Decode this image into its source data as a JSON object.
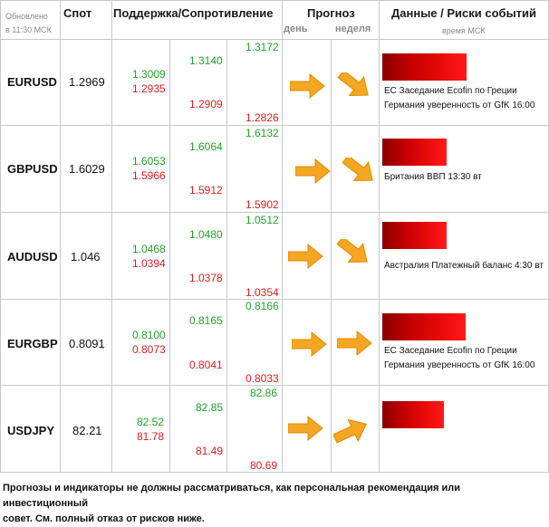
{
  "header": {
    "updated_line1": "Обновлено",
    "updated_line2": "в 11:30 МСК",
    "spot": "Спот",
    "support_resistance": "Поддержка/Сопротивление",
    "forecast": "Прогноз",
    "day": "день",
    "week": "неделя",
    "events": "Данные / Риски событий",
    "events_time": "время МСК"
  },
  "colors": {
    "support": "#22a02a",
    "resistance": "#d81e1e",
    "arrow": "#f5a623",
    "event_bar": "#e00000"
  },
  "rows": [
    {
      "pair": "EURUSD",
      "spot": "1.2969",
      "s1": "1.3009",
      "r1": "1.2935",
      "s2": "1.3140",
      "r2": "1.2909",
      "s3": "1.3172",
      "r3": "1.2826",
      "day_arrow": "right-arrow-icon",
      "week_arrow": "down-right-arrow-icon",
      "events": [
        "ЕС Заседание Ecofin по Греции",
        "Германия уверенность от GfK 16:00"
      ]
    },
    {
      "pair": "GBPUSD",
      "spot": "1.6029",
      "s1": "1.6053",
      "r1": "1.5966",
      "s2": "1.6064",
      "r2": "1.5912",
      "s3": "1.6132",
      "r3": "1.5902",
      "day_arrow": "right-arrow-icon",
      "week_arrow": "down-right-arrow-icon",
      "events": [
        "Британия ВВП 13:30 вт"
      ]
    },
    {
      "pair": "AUDUSD",
      "spot": "1.046",
      "s1": "1.0468",
      "r1": "1.0394",
      "s2": "1.0480",
      "r2": "1.0378",
      "s3": "1.0512",
      "r3": "1.0354",
      "day_arrow": "right-arrow-icon",
      "week_arrow": "down-right-arrow-icon",
      "events": [
        "Австралия Платежный баланс 4:30 вт"
      ]
    },
    {
      "pair": "EURGBP",
      "spot": "0.8091",
      "s1": "0.8100",
      "r1": "0.8073",
      "s2": "0.8165",
      "r2": "0.8041",
      "s3": "0.8166",
      "r3": "0.8033",
      "day_arrow": "right-arrow-icon",
      "week_arrow": "right-arrow-icon",
      "events": [
        "ЕС Заседание Ecofin по Греции",
        "Германия уверенность от GfK 16:00"
      ]
    },
    {
      "pair": "USDJPY",
      "spot": "82.21",
      "s1": "82.52",
      "r1": "81.78",
      "s2": "82.85",
      "r2": "81.49",
      "s3": "82.86",
      "r3": "80.69",
      "day_arrow": "right-arrow-icon",
      "week_arrow": "up-right-arrow-icon",
      "events": []
    }
  ],
  "footer": {
    "line1": "Прогнозы и индикаторы не должны рассматриваться, как персональная рекомендация или инвестиционный",
    "line2": "совет. См. полный отказ от рисков ниже."
  }
}
